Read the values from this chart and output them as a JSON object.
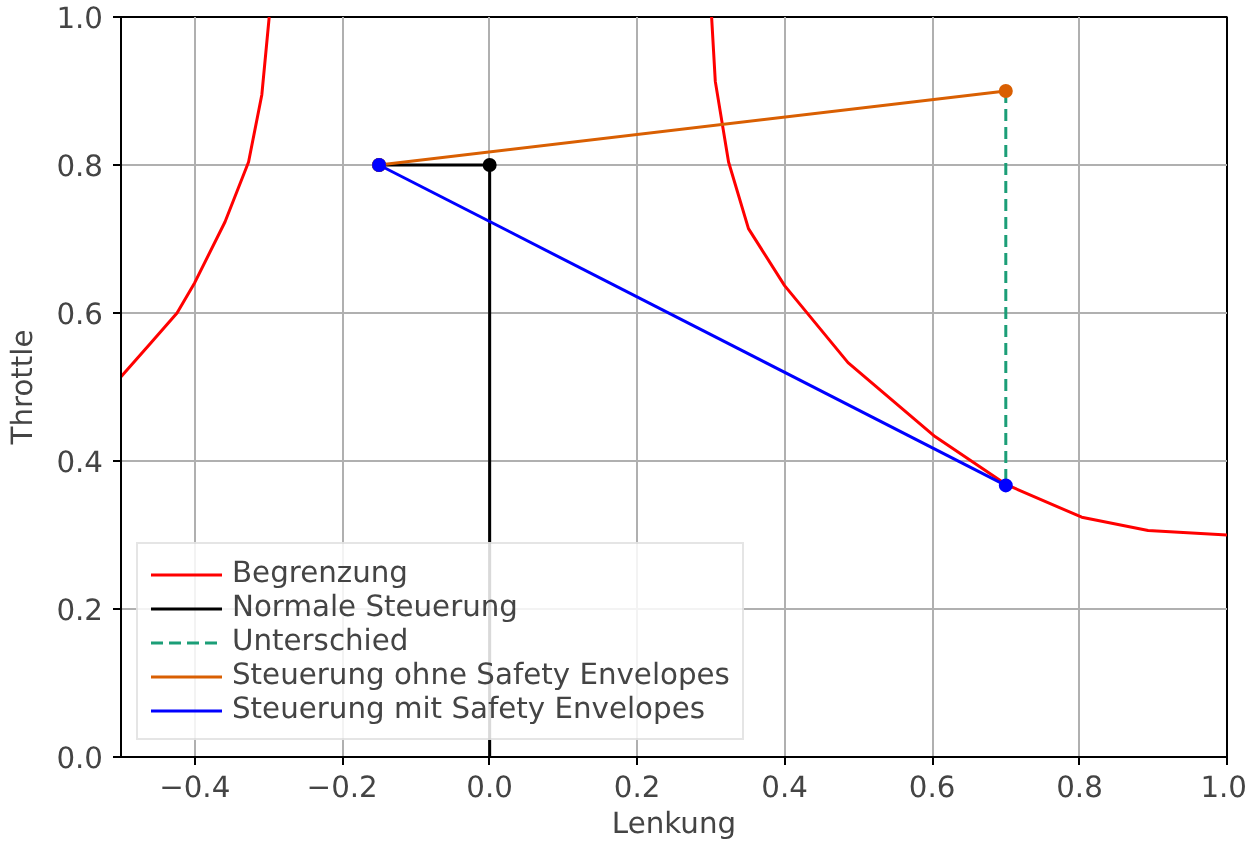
{
  "chart_data": {
    "type": "line",
    "xlabel": "Lenkung",
    "ylabel": "Throttle",
    "xlim": [
      -0.5,
      1.0
    ],
    "ylim": [
      0.0,
      1.0
    ],
    "xticks": [
      {
        "value": -0.4,
        "label": "−0.4"
      },
      {
        "value": -0.2,
        "label": "−0.2"
      },
      {
        "value": 0.0,
        "label": "0.0"
      },
      {
        "value": 0.2,
        "label": "0.2"
      },
      {
        "value": 0.4,
        "label": "0.4"
      },
      {
        "value": 0.6,
        "label": "0.6"
      },
      {
        "value": 0.8,
        "label": "0.8"
      },
      {
        "value": 1.0,
        "label": "1.0"
      }
    ],
    "yticks": [
      {
        "value": 0.0,
        "label": "0.0"
      },
      {
        "value": 0.2,
        "label": "0.2"
      },
      {
        "value": 0.4,
        "label": "0.4"
      },
      {
        "value": 0.6,
        "label": "0.6"
      },
      {
        "value": 0.8,
        "label": "0.8"
      },
      {
        "value": 1.0,
        "label": "1.0"
      }
    ],
    "grid": true,
    "legend": "bottom left",
    "series": [
      {
        "name": "Begrenzung",
        "color": "#ff0000",
        "marker": "none",
        "line_style": "solid",
        "x": [
          -0.5,
          -0.459,
          -0.424,
          -0.4,
          -0.359,
          -0.327,
          -0.309,
          -0.299
        ],
        "values": [
          0.514,
          0.56,
          0.6,
          0.641,
          0.723,
          0.804,
          0.895,
          1.0
        ]
      },
      {
        "color": "#ff0000",
        "marker": "none",
        "line_style": "solid",
        "x": [
          0.301,
          0.306,
          0.324,
          0.351,
          0.4,
          0.486,
          0.604,
          0.701,
          0.803,
          0.893,
          1.0
        ],
        "values": [
          1.0,
          0.913,
          0.804,
          0.714,
          0.637,
          0.533,
          0.433,
          0.368,
          0.324,
          0.306,
          0.3
        ]
      },
      {
        "name": "Normale Steuerung",
        "color": "#000000",
        "marker": "circle",
        "line_style": "solid",
        "x": [
          -0.15,
          0.0
        ],
        "values": [
          0.8,
          0.8
        ]
      },
      {
        "color": "#000000",
        "marker": "none",
        "line_style": "solid",
        "x": [
          0.0,
          0.0
        ],
        "values": [
          0.8,
          0.0
        ]
      },
      {
        "name": "Unterschied",
        "color": "#1b9e77",
        "marker": "none",
        "line_style": "dashed",
        "x": [
          0.7,
          0.7
        ],
        "values": [
          0.9,
          0.367
        ]
      },
      {
        "name": "Steuerung ohne Safety Envelopes",
        "color": "#d95f02",
        "marker": "circle",
        "line_style": "solid",
        "x": [
          -0.15,
          0.7
        ],
        "values": [
          0.8,
          0.9
        ]
      },
      {
        "name": "Steuerung mit Safety Envelopes",
        "color": "#0000ff",
        "marker": "circle",
        "line_style": "solid",
        "x": [
          -0.15,
          0.7
        ],
        "values": [
          0.8,
          0.367
        ]
      }
    ]
  }
}
